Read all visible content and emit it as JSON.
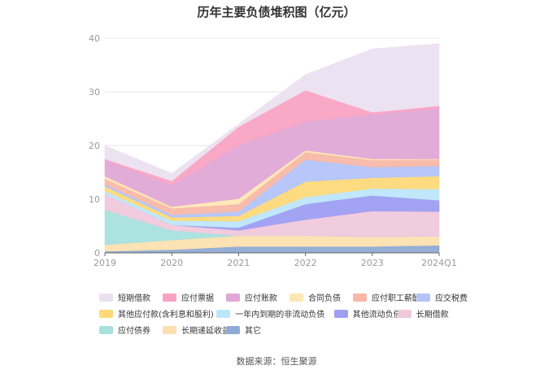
{
  "chart_data": {
    "type": "area",
    "stacked": true,
    "title": "历年主要负债堆积图（亿元）",
    "x": [
      "2019",
      "2020",
      "2021",
      "2022",
      "2023",
      "2024Q1"
    ],
    "ylim": [
      0,
      40
    ],
    "yticks": [
      "0",
      "10",
      "20",
      "30",
      "40"
    ],
    "grid": true,
    "legend_position": "bottom",
    "series": [
      {
        "name": "其它",
        "color": "#8eaad6",
        "values": [
          0.3,
          0.6,
          1.2,
          1.2,
          1.2,
          1.4
        ]
      },
      {
        "name": "长期递延收益",
        "color": "#fde0b0",
        "values": [
          1.2,
          1.8,
          2.0,
          2.0,
          1.8,
          1.7
        ]
      },
      {
        "name": "应付债券",
        "color": "#a8e0de",
        "values": [
          6.5,
          1.8,
          0,
          0,
          0,
          0
        ]
      },
      {
        "name": "长期借款",
        "color": "#f0c8dc",
        "values": [
          3.0,
          1.0,
          1.0,
          3.0,
          4.8,
          4.6
        ]
      },
      {
        "name": "其他流动负债",
        "color": "#9e9ef2",
        "values": [
          0,
          0,
          0.5,
          2.9,
          2.9,
          2.1
        ]
      },
      {
        "name": "一年内到期的非流动负债",
        "color": "#bde6fb",
        "values": [
          0.5,
          0.8,
          1.2,
          1.3,
          1.3,
          2.1
        ]
      },
      {
        "name": "其他应付款(含利息和股利)",
        "color": "#fdd97a",
        "values": [
          0.9,
          0.6,
          1.0,
          2.9,
          2.0,
          2.4
        ]
      },
      {
        "name": "应交税费",
        "color": "#b3c4fa",
        "values": [
          0.4,
          0.5,
          0.8,
          4.1,
          2.0,
          1.9
        ]
      },
      {
        "name": "应付职工薪酬",
        "color": "#f8b8a8",
        "values": [
          1.0,
          1.2,
          1.4,
          1.4,
          1.3,
          1.2
        ]
      },
      {
        "name": "合同负债",
        "color": "#fde7b5",
        "values": [
          0.5,
          0.3,
          1.0,
          0.3,
          0.2,
          0.1
        ]
      },
      {
        "name": "应付账款",
        "color": "#e0a8d6",
        "values": [
          3.0,
          4.0,
          10.0,
          5.4,
          8.3,
          9.5
        ]
      },
      {
        "name": "应付票据",
        "color": "#f9a3c3",
        "values": [
          0.2,
          0.8,
          3.4,
          5.8,
          0.4,
          0.4
        ]
      },
      {
        "name": "短期借款",
        "color": "#ece0f0",
        "values": [
          2.5,
          1.4,
          0.5,
          2.9,
          11.8,
          11.6
        ]
      }
    ]
  },
  "legend_rows": [
    [
      "短期借款",
      "应付票据",
      "应付账款",
      "合同负债",
      "应付职工薪酬",
      "应交税费"
    ],
    [
      "其他应付款(含利息和股利)",
      "一年内到期的非流动负债",
      "其他流动负债",
      "长期借款"
    ],
    [
      "应付债券",
      "长期递延收益",
      "其它"
    ]
  ],
  "source": "数据来源：恒生聚源"
}
